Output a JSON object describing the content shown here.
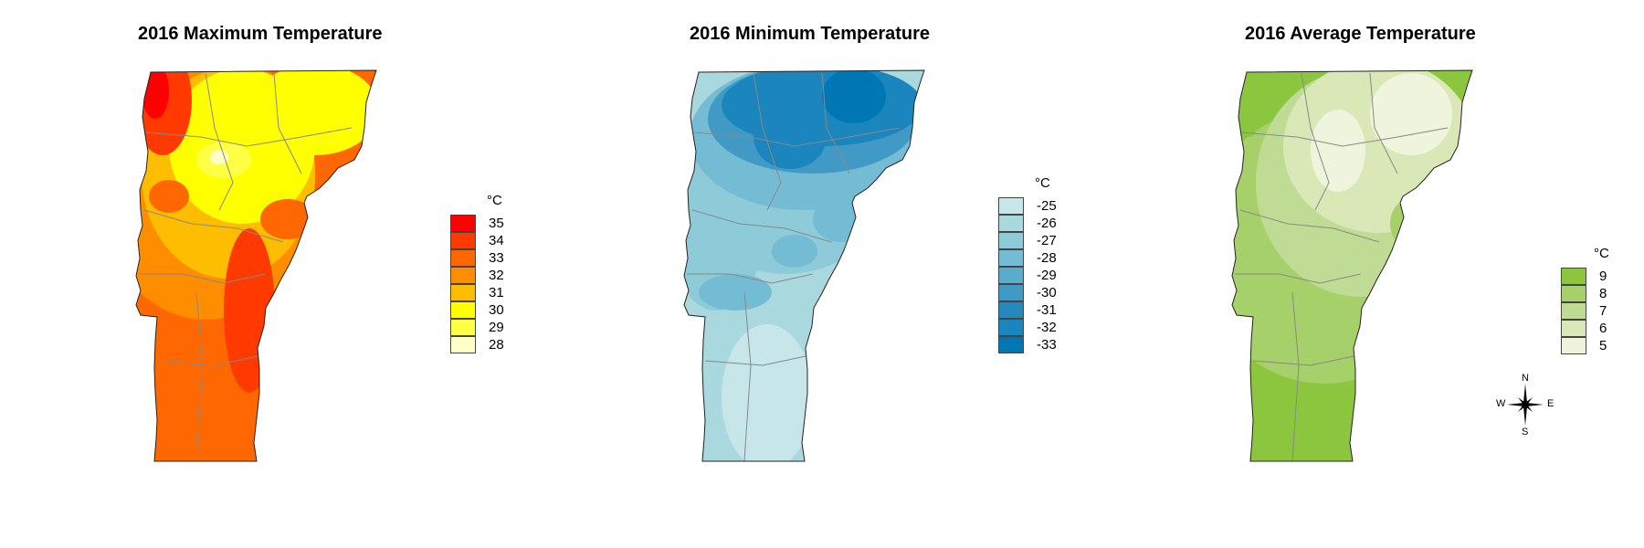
{
  "maps": [
    {
      "id": "max",
      "title": "2016 Maximum Temperature",
      "unit": "°C",
      "legend": [
        {
          "label": "35",
          "color": "#ff0000"
        },
        {
          "label": "34",
          "color": "#ff3a00"
        },
        {
          "label": "33",
          "color": "#ff6800"
        },
        {
          "label": "32",
          "color": "#ff8d00"
        },
        {
          "label": "31",
          "color": "#ffbd00"
        },
        {
          "label": "30",
          "color": "#ffff00"
        },
        {
          "label": "29",
          "color": "#ffff45"
        },
        {
          "label": "28",
          "color": "#ffffc8"
        }
      ]
    },
    {
      "id": "min",
      "title": "2016 Minimum Temperature",
      "unit": "°C",
      "legend": [
        {
          "label": "-25",
          "color": "#c6e6e9"
        },
        {
          "label": "-26",
          "color": "#a9d8df"
        },
        {
          "label": "-27",
          "color": "#8ecbd9"
        },
        {
          "label": "-28",
          "color": "#74bcd4"
        },
        {
          "label": "-29",
          "color": "#5aaccd"
        },
        {
          "label": "-30",
          "color": "#409ac5"
        },
        {
          "label": "-31",
          "color": "#2689bd"
        },
        {
          "label": "-32",
          "color": "#1a86bd"
        },
        {
          "label": "-33",
          "color": "#0077b5"
        }
      ]
    },
    {
      "id": "avg",
      "title": "2016 Average Temperature",
      "unit": "°C",
      "legend": [
        {
          "label": "9",
          "color": "#8cc63f"
        },
        {
          "label": "8",
          "color": "#a6d16a"
        },
        {
          "label": "7",
          "color": "#c0dc94"
        },
        {
          "label": "6",
          "color": "#d9e8b6"
        },
        {
          "label": "5",
          "color": "#eff4dc"
        }
      ]
    }
  ],
  "compass": {
    "n": "N",
    "s": "S",
    "e": "E",
    "w": "W"
  }
}
